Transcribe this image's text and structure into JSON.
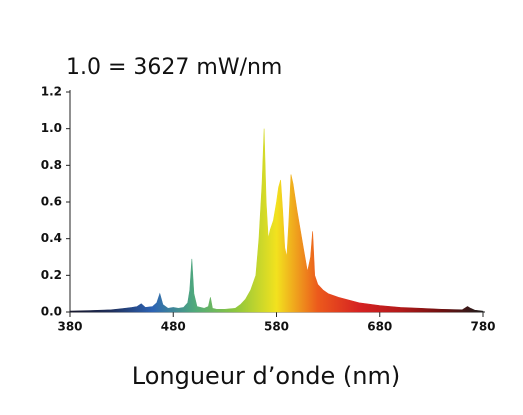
{
  "chart_data": {
    "type": "area",
    "title": "1.0 = 3627 mW/nm",
    "x_label": "Longueur d’onde (nm)",
    "x": [
      380,
      400,
      420,
      430,
      440,
      445,
      449,
      453,
      460,
      464,
      467,
      470,
      475,
      480,
      485,
      490,
      494,
      496,
      498,
      500,
      503,
      510,
      514,
      516,
      518,
      522,
      530,
      540,
      545,
      550,
      555,
      560,
      563,
      566,
      568,
      570,
      572,
      574,
      577,
      580,
      582,
      584,
      586,
      588,
      590,
      592,
      594,
      596,
      600,
      603,
      606,
      610,
      613,
      615,
      617,
      620,
      625,
      630,
      640,
      650,
      660,
      680,
      700,
      720,
      740,
      760,
      765,
      768,
      772,
      780
    ],
    "y": [
      0.005,
      0.008,
      0.012,
      0.018,
      0.025,
      0.03,
      0.045,
      0.025,
      0.03,
      0.05,
      0.1,
      0.04,
      0.02,
      0.025,
      0.02,
      0.025,
      0.05,
      0.12,
      0.29,
      0.1,
      0.03,
      0.02,
      0.03,
      0.08,
      0.02,
      0.015,
      0.015,
      0.02,
      0.04,
      0.07,
      0.12,
      0.2,
      0.4,
      0.7,
      1.0,
      0.6,
      0.4,
      0.45,
      0.5,
      0.6,
      0.68,
      0.72,
      0.55,
      0.35,
      0.3,
      0.5,
      0.75,
      0.7,
      0.55,
      0.45,
      0.35,
      0.22,
      0.3,
      0.44,
      0.2,
      0.15,
      0.12,
      0.1,
      0.08,
      0.065,
      0.05,
      0.035,
      0.025,
      0.02,
      0.015,
      0.012,
      0.03,
      0.02,
      0.01,
      0.005
    ],
    "colors": [
      "#15152a",
      "#1f2f5c",
      "#2d63b4",
      "#4fa97c",
      "#8cc63e",
      "#f2e21e",
      "#ec5a1c",
      "#d62222",
      "#b31a1a",
      "#6e1010",
      "#1e1e1e"
    ],
    "xlim": [
      380,
      780
    ],
    "xticks": [
      380,
      480,
      580,
      680,
      780
    ],
    "ylim": [
      0,
      1.2
    ],
    "yticks": [
      {
        "value": 0,
        "label": "0.0"
      },
      0.2,
      0.4,
      0.6,
      0.8,
      {
        "value": 1,
        "label": "1.0"
      },
      1.2
    ]
  }
}
